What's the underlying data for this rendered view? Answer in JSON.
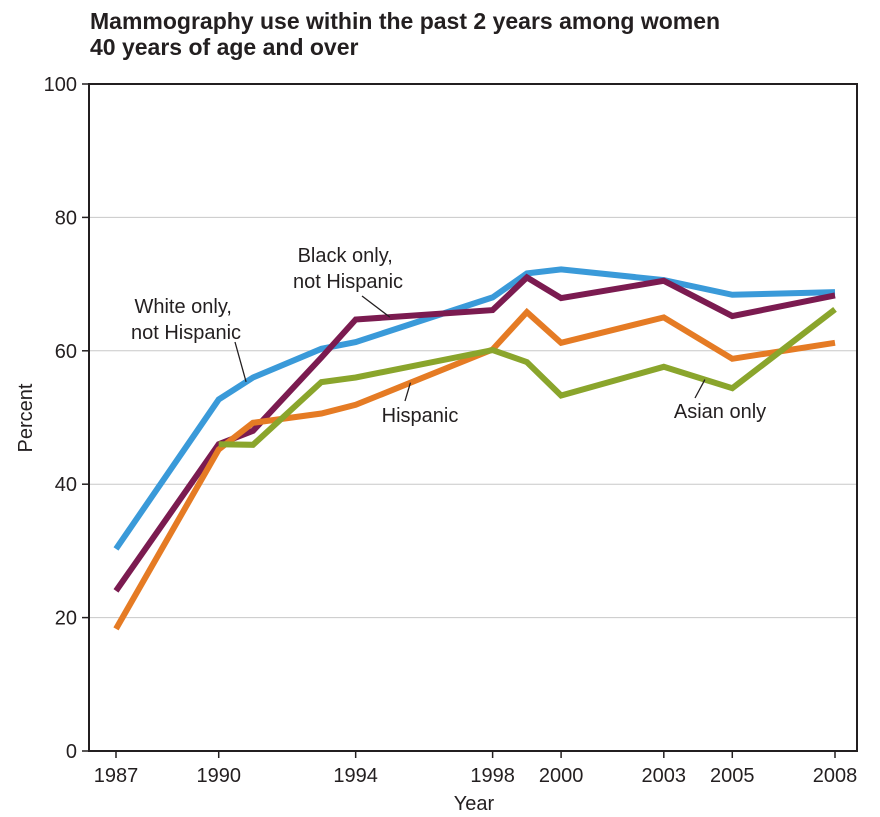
{
  "title_lines": [
    "Mammography use within the past 2 years among women",
    "40 years of age and over"
  ],
  "chart_data": {
    "type": "line",
    "title": "Mammography use within the past 2 years among women 40 years of age and over",
    "xlabel": "Year",
    "ylabel": "Percent",
    "xlim": [
      1987,
      2008
    ],
    "ylim": [
      0,
      100
    ],
    "x_ticks": [
      1987,
      1990,
      1994,
      1998,
      2000,
      2003,
      2005,
      2008
    ],
    "y_ticks": [
      0,
      20,
      40,
      60,
      80,
      100
    ],
    "grid": "horizontal",
    "series": [
      {
        "name": "White only, not Hispanic",
        "color": "#3a9ad9",
        "x": [
          1987,
          1990,
          1991,
          1993,
          1994,
          1998,
          1999,
          2000,
          2003,
          2005,
          2008
        ],
        "y": [
          30.3,
          52.7,
          56.0,
          60.3,
          61.3,
          68.0,
          71.6,
          72.2,
          70.6,
          68.4,
          68.8
        ]
      },
      {
        "name": "Black only, not Hispanic",
        "color": "#7b1b50",
        "x": [
          1987,
          1990,
          1991,
          1993,
          1994,
          1998,
          1999,
          2000,
          2003,
          2005,
          2008
        ],
        "y": [
          24.0,
          46.0,
          48.0,
          59.0,
          64.7,
          66.1,
          71.0,
          67.9,
          70.5,
          65.2,
          68.3
        ]
      },
      {
        "name": "Hispanic",
        "color": "#e57b24",
        "x": [
          1987,
          1990,
          1991,
          1993,
          1994,
          1998,
          1999,
          2000,
          2003,
          2005,
          2008
        ],
        "y": [
          18.3,
          45.2,
          49.2,
          50.6,
          51.9,
          60.2,
          65.8,
          61.2,
          65.0,
          58.8,
          61.2
        ]
      },
      {
        "name": "Asian only",
        "color": "#8aa52c",
        "x": [
          1990,
          1991,
          1993,
          1994,
          1998,
          1999,
          2000,
          2003,
          2005,
          2008
        ],
        "y": [
          46.0,
          45.9,
          55.3,
          56.0,
          60.1,
          58.3,
          53.3,
          57.6,
          54.4,
          66.2
        ]
      }
    ],
    "annotations": [
      {
        "lines": [
          "White only,",
          "not Hispanic"
        ],
        "series": "White only, not Hispanic"
      },
      {
        "lines": [
          "Black only,",
          "not Hispanic"
        ],
        "series": "Black only, not Hispanic"
      },
      {
        "lines": [
          "Hispanic"
        ],
        "series": "Hispanic"
      },
      {
        "lines": [
          "Asian only"
        ],
        "series": "Asian only"
      }
    ]
  }
}
